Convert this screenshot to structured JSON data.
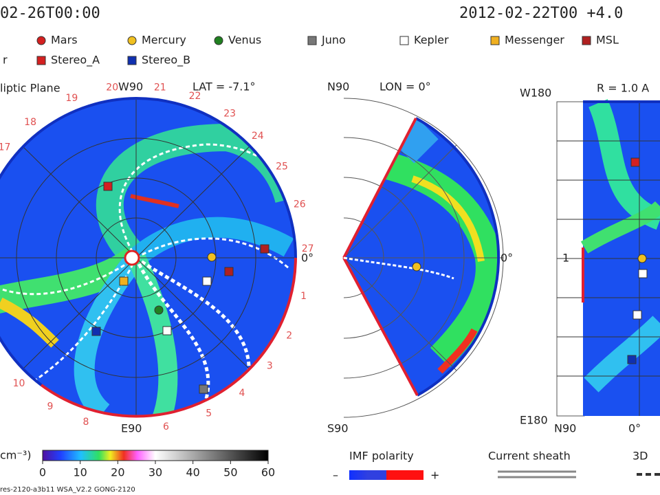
{
  "header": {
    "left_time": "02-26T00:00",
    "right_time": "2012-02-22T00 +4.0"
  },
  "legend": [
    {
      "label": "Mars",
      "color": "#d42020",
      "shape": "circle"
    },
    {
      "label": "Mercury",
      "color": "#f0c020",
      "shape": "circle"
    },
    {
      "label": "Venus",
      "color": "#208020",
      "shape": "circle"
    },
    {
      "label": "Juno",
      "color": "#777777",
      "shape": "square"
    },
    {
      "label": "Kepler",
      "color": "#ffffff",
      "shape": "square"
    },
    {
      "label": "Messenger",
      "color": "#f0b020",
      "shape": "square"
    },
    {
      "label": "MSL",
      "color": "#b02020",
      "shape": "square"
    },
    {
      "label": "r",
      "color": null,
      "shape": null
    },
    {
      "label": "Stereo_A",
      "color": "#d42020",
      "shape": "square"
    },
    {
      "label": "Stereo_B",
      "color": "#1030b0",
      "shape": "square"
    }
  ],
  "ecliptic": {
    "title": "liptic Plane",
    "top": "W90",
    "lat": "LAT = -7.1°",
    "bottom": "E90",
    "right": "0°",
    "day_labels": [
      "27",
      "26",
      "25",
      "24",
      "23",
      "22",
      "21",
      "20",
      "19",
      "18",
      "17",
      "1",
      "2",
      "3",
      "4",
      "5",
      "6",
      "8",
      "9",
      "10"
    ]
  },
  "meridional": {
    "top": "N90",
    "lon": "LON = 0°",
    "bottom": "S90",
    "right": "0°"
  },
  "radial": {
    "top": "W180",
    "r": "R = 1.0 A",
    "bottom": "E180",
    "mid": "1",
    "x_left": "N90",
    "x_mid": "0°"
  },
  "colorbar": {
    "unit": "cm⁻³)",
    "ticks": [
      0,
      10,
      20,
      30,
      40,
      50,
      60
    ]
  },
  "imf": {
    "title": "IMF polarity",
    "minus": "–",
    "plus": "+"
  },
  "current_sheath": "Current sheath",
  "view3d": "3D",
  "footer": "res-2120-a3b11 WSA_V2.2 GONG-2120"
}
